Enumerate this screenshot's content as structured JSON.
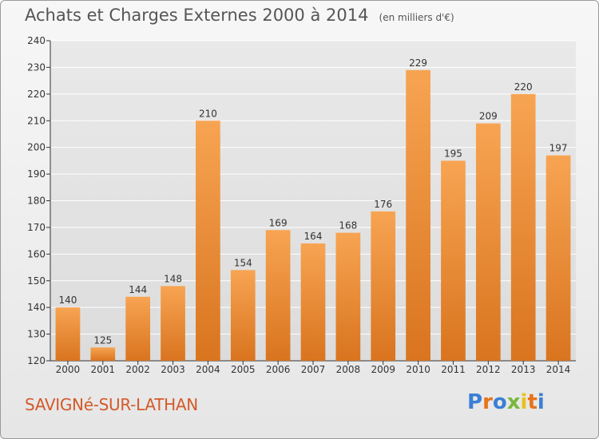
{
  "header": {
    "title": "Achats et Charges Externes 2000 à 2014",
    "unit": "(en milliers d'€)"
  },
  "footer": {
    "commune": "SAVIGNé-SUR-LATHAN",
    "brand": "Proxiti",
    "brand_colors": [
      "#3a7fd5",
      "#e8731a",
      "#3a7fd5",
      "#78b83a",
      "#e8c21a",
      "#e8731a",
      "#3a7fd5"
    ]
  },
  "colors": {
    "bar_top": "#f7a452",
    "bar_bottom": "#d9741f",
    "grid": "#ffffff",
    "axis": "#333333",
    "label": "#333333"
  },
  "chart_data": {
    "type": "bar",
    "title": "Achats et Charges Externes 2000 à 2014",
    "subtitle": "(en milliers d'€)",
    "xlabel": "",
    "ylabel": "",
    "categories": [
      "2000",
      "2001",
      "2002",
      "2003",
      "2004",
      "2005",
      "2006",
      "2007",
      "2008",
      "2009",
      "2010",
      "2011",
      "2012",
      "2013",
      "2014"
    ],
    "values": [
      140,
      125,
      144,
      148,
      210,
      154,
      169,
      164,
      168,
      176,
      229,
      195,
      209,
      220,
      197
    ],
    "ylim": [
      120,
      240
    ],
    "yticks": [
      120,
      130,
      140,
      150,
      160,
      170,
      180,
      190,
      200,
      210,
      220,
      230,
      240
    ],
    "grid": true,
    "legend": "none"
  }
}
